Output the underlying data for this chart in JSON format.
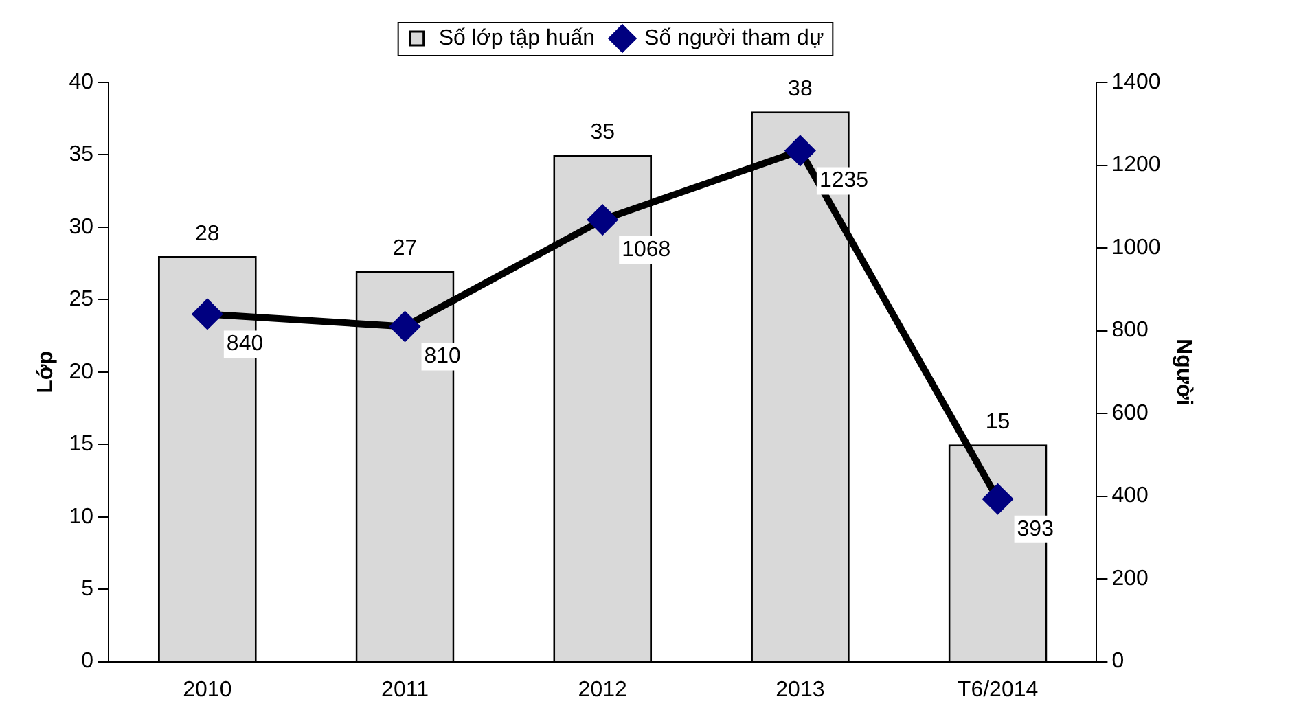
{
  "chart_data": {
    "type": "bar",
    "categories": [
      "2010",
      "2011",
      "2012",
      "2013",
      "T6/2014"
    ],
    "series": [
      {
        "name": "Số lớp tập huấn",
        "color": "#d9d9d9",
        "values": [
          28,
          27,
          35,
          38,
          15
        ]
      },
      {
        "name": "Số người tham dự",
        "type": "line",
        "axis": "y2",
        "color": "#000000",
        "values": [
          840,
          810,
          1068,
          1235,
          393
        ]
      }
    ],
    "ylabel": "Lớp",
    "y2label": "Người",
    "ylim": [
      0,
      40
    ],
    "yticks": [
      0,
      5,
      10,
      15,
      20,
      25,
      30,
      35,
      40
    ],
    "y2lim": [
      0,
      1400
    ],
    "y2ticks": [
      0,
      200,
      400,
      600,
      800,
      1000,
      1200,
      1400
    ],
    "data_labels": true,
    "legend": "top",
    "grid": false,
    "marker": "diamond",
    "line_style": "solid"
  }
}
